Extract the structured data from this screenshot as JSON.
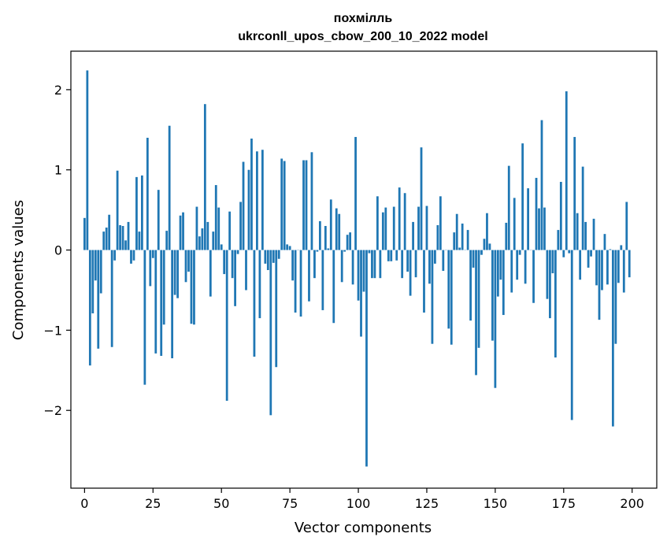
{
  "chart_data": {
    "type": "bar",
    "title": "похмілль",
    "subtitle": "ukrconll_upos_cbow_200_10_2022 model",
    "xlabel": "Vector components",
    "ylabel": "Components values",
    "xlim": [
      -5,
      209
    ],
    "ylim": [
      -2.97,
      2.48
    ],
    "xticks": [
      0,
      25,
      50,
      75,
      100,
      125,
      150,
      175,
      200
    ],
    "yticks": [
      -2,
      -1,
      0,
      1,
      2
    ],
    "ytick_labels": [
      "−2",
      "−1",
      "0",
      "1",
      "2"
    ],
    "grid": false,
    "bar_color": "#1f77b4",
    "values": [
      0.4,
      2.24,
      -1.44,
      -0.79,
      -0.38,
      -1.23,
      -0.54,
      0.23,
      0.28,
      0.44,
      -1.21,
      -0.13,
      0.99,
      0.31,
      0.3,
      0.12,
      0.35,
      -0.17,
      -0.13,
      0.91,
      0.23,
      0.93,
      -1.68,
      1.4,
      -0.45,
      -0.1,
      -1.29,
      0.75,
      -1.32,
      -0.93,
      0.24,
      1.55,
      -1.35,
      -0.56,
      -0.6,
      0.43,
      0.47,
      -0.4,
      -0.27,
      -0.92,
      -0.93,
      0.54,
      0.17,
      0.27,
      1.82,
      0.35,
      -0.58,
      0.23,
      0.81,
      0.53,
      0.07,
      -0.3,
      -1.88,
      0.48,
      -0.35,
      -0.7,
      -0.05,
      0.6,
      1.1,
      -0.5,
      1.0,
      1.39,
      -1.33,
      1.23,
      -0.85,
      1.25,
      -0.17,
      -0.25,
      -2.06,
      -0.16,
      -1.46,
      -0.11,
      1.14,
      1.11,
      0.07,
      0.05,
      -0.38,
      -0.78,
      0.0,
      -0.83,
      1.12,
      1.12,
      -0.64,
      1.22,
      -0.35,
      -0.02,
      0.36,
      -0.75,
      0.3,
      0.02,
      0.63,
      -0.91,
      0.52,
      0.45,
      -0.4,
      -0.02,
      0.19,
      0.22,
      -0.43,
      1.41,
      -0.63,
      -1.08,
      -0.52,
      -2.7,
      -0.04,
      -0.35,
      -0.35,
      0.67,
      -0.35,
      0.47,
      0.53,
      -0.14,
      -0.14,
      0.54,
      -0.13,
      0.78,
      -0.35,
      0.71,
      -0.27,
      -0.57,
      0.35,
      -0.34,
      0.54,
      1.28,
      -0.78,
      0.55,
      -0.42,
      -1.17,
      -0.17,
      0.31,
      0.67,
      -0.26,
      0.0,
      -0.98,
      -1.18,
      0.22,
      0.45,
      0.03,
      0.33,
      0.0,
      0.25,
      -0.88,
      -0.22,
      -1.56,
      -1.22,
      -0.06,
      0.14,
      0.46,
      0.08,
      -1.13,
      -1.72,
      -0.58,
      -0.37,
      -0.81,
      0.34,
      1.05,
      -0.53,
      0.65,
      -0.37,
      -0.06,
      1.33,
      -0.42,
      0.77,
      0.0,
      -0.66,
      0.9,
      0.52,
      1.62,
      0.53,
      -0.61,
      -0.85,
      -0.29,
      -1.34,
      0.25,
      0.85,
      -0.09,
      1.98,
      -0.04,
      -2.12,
      1.41,
      0.46,
      -0.37,
      1.04,
      0.35,
      -0.22,
      -0.08,
      0.39,
      -0.44,
      -0.87,
      -0.5,
      0.2,
      -0.43,
      0.01,
      -2.2,
      -1.17,
      -0.41,
      0.06,
      -0.53,
      0.6,
      -0.34
    ]
  }
}
